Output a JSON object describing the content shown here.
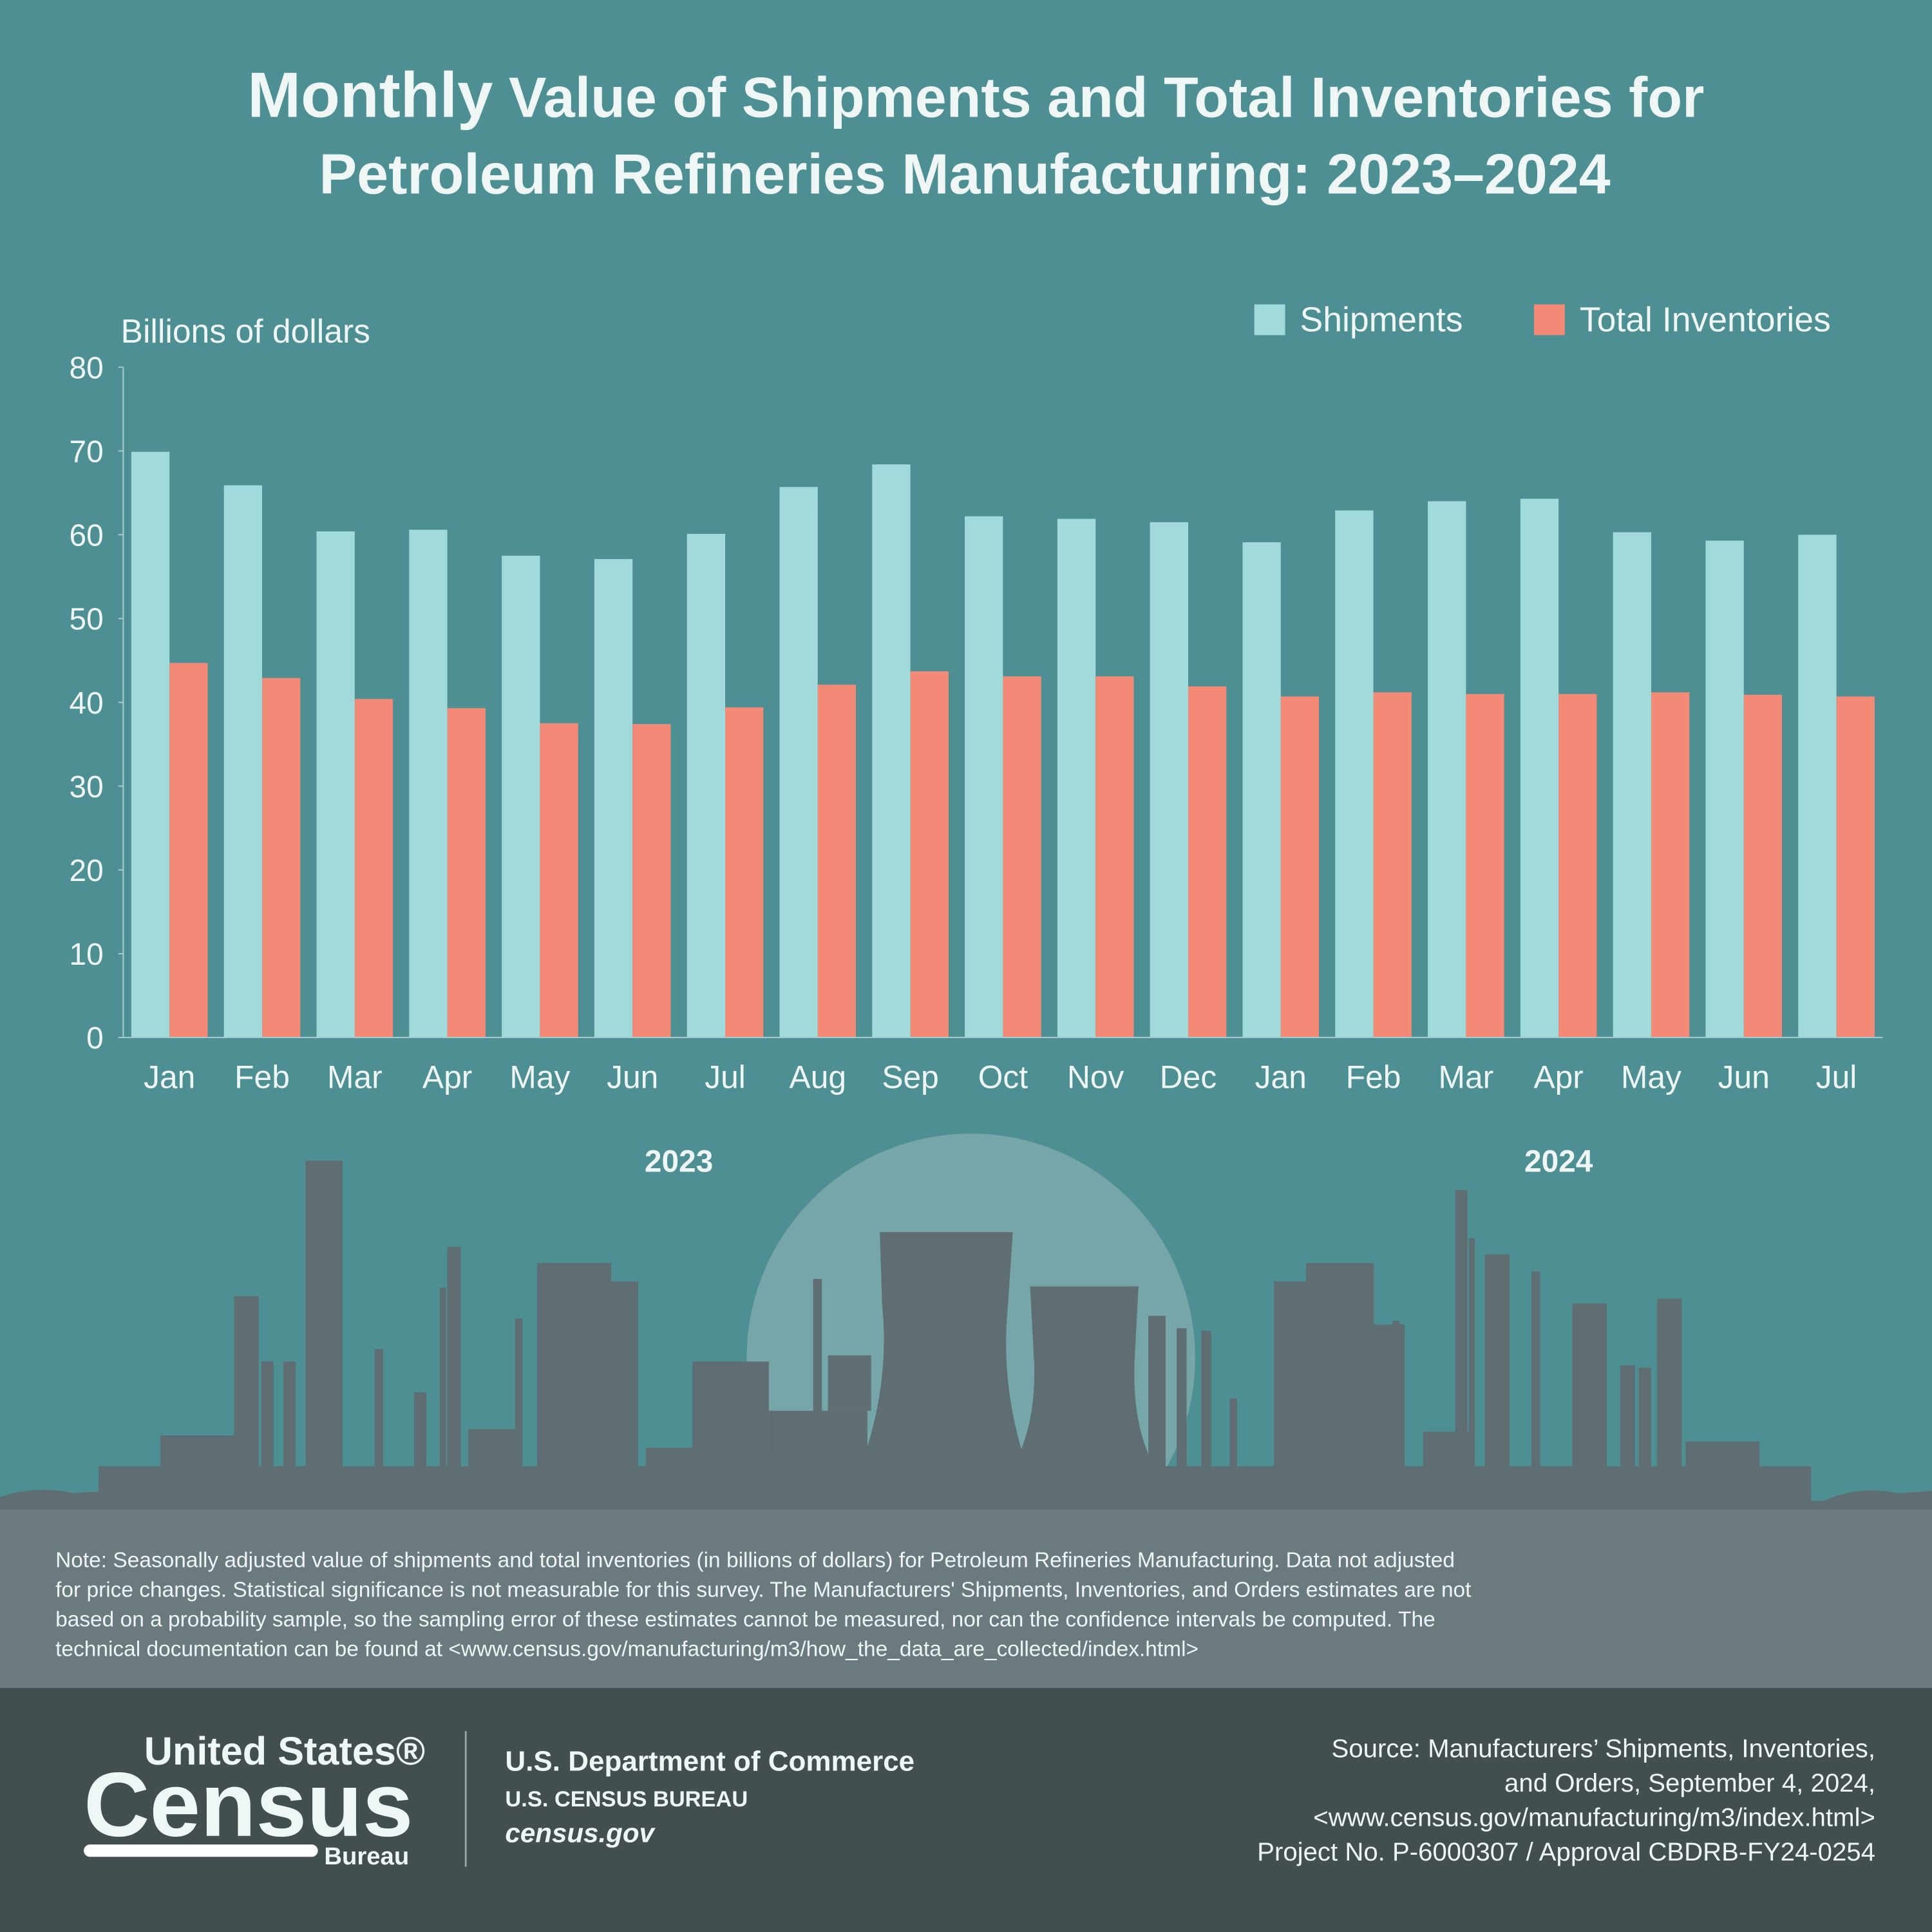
{
  "chart_data": {
    "type": "bar",
    "title": [
      "Monthly",
      "Value of Shipments and Total Inventories for",
      "Petroleum Refineries Manufacturing: 2023–2024"
    ],
    "y_label": "Billions of dollars",
    "categories": [
      "Jan",
      "Feb",
      "Mar",
      "Apr",
      "May",
      "Jun",
      "Jul",
      "Aug",
      "Sep",
      "Oct",
      "Nov",
      "Dec",
      "Jan",
      "Feb",
      "Mar",
      "Apr",
      "May",
      "Jun",
      "Jul"
    ],
    "year_labels": [
      "2023",
      "2024"
    ],
    "series": [
      {
        "name": "Shipments",
        "color": "#a0dadb",
        "values": [
          69.9,
          65.9,
          60.4,
          60.6,
          57.5,
          57.1,
          60.1,
          65.7,
          68.4,
          62.2,
          61.9,
          61.5,
          59.1,
          62.9,
          64.0,
          64.3,
          60.3,
          59.3,
          60.0
        ]
      },
      {
        "name": "Total Inventories",
        "color": "#f28a77",
        "values": [
          44.7,
          42.9,
          40.4,
          39.3,
          37.5,
          37.4,
          39.4,
          42.1,
          43.7,
          43.1,
          43.1,
          41.9,
          40.7,
          41.2,
          41.0,
          41.0,
          41.2,
          40.9,
          40.7
        ]
      }
    ],
    "ylim": [
      0,
      80
    ],
    "yticks": [
      0,
      10,
      20,
      30,
      40,
      50,
      60,
      70,
      80
    ],
    "grid": false,
    "legend": "top-right"
  },
  "note": [
    "Note: Seasonally adjusted value of shipments and total inventories (in billions of dollars) for Petroleum Refineries Manufacturing. Data not adjusted",
    "for price changes. Statistical significance is not measurable for this survey. The Manufacturers' Shipments, Inventories, and Orders estimates are not",
    "based on a probability sample, so the sampling error of these estimates cannot be measured, nor can the confidence intervals be computed. The",
    "technical documentation can be found at <www.census.gov/manufacturing/m3/how_the_data_are_collected/index.html>"
  ],
  "footer": {
    "logo": {
      "top": "United States®",
      "main": "Census",
      "bottom": "Bureau"
    },
    "department": "U.S. Department of Commerce",
    "bureau": "U.S. CENSUS BUREAU",
    "site": "census.gov",
    "source": [
      "Source: Manufacturers’ Shipments, Inventories,",
      "and Orders, September 4, 2024,",
      "<www.census.gov/manufacturing/m3/index.html>",
      "Project No. P-6000307 / Approval CBDRB-FY24-0254"
    ]
  }
}
